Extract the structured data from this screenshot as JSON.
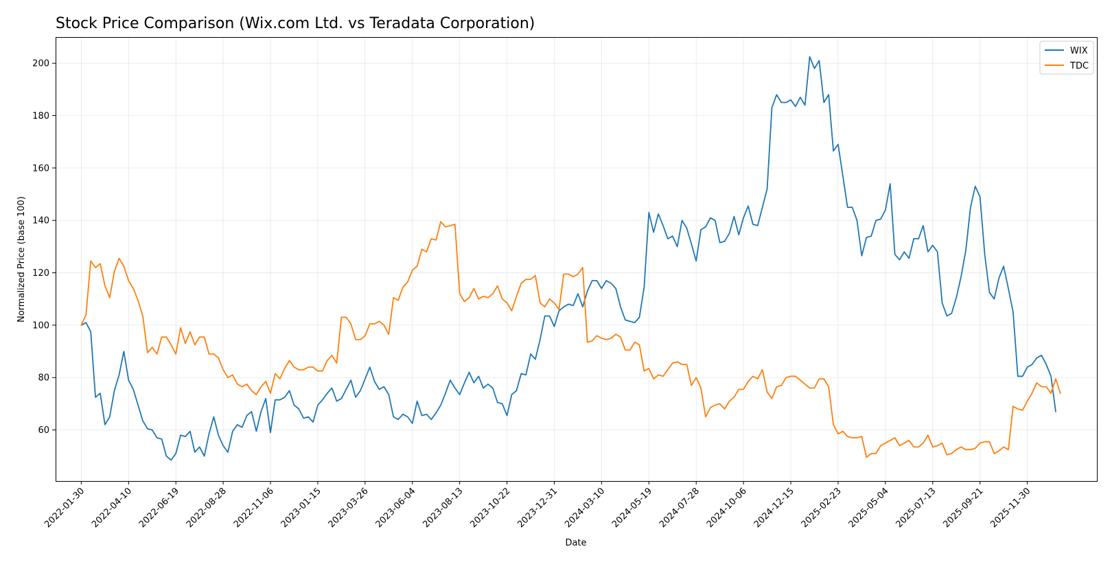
{
  "chart_data": {
    "type": "line",
    "title": "Stock Price Comparison (Wix.com Ltd. vs Teradata Corporation)",
    "xlabel": "Date",
    "ylabel": "Normalized Price (base 100)",
    "grid": true,
    "legend_position": "top-right",
    "x_start": "2022-01-30",
    "x_end": "2026-01-11",
    "x_step_days": 7,
    "x_range": [
      "2021-12-23",
      "2026-03-13"
    ],
    "ylim": [
      40.5,
      210
    ],
    "x_ticks": [
      "2022-01-30",
      "2022-04-10",
      "2022-06-19",
      "2022-08-28",
      "2022-11-06",
      "2023-01-15",
      "2023-03-26",
      "2023-06-04",
      "2023-08-13",
      "2023-10-22",
      "2023-12-31",
      "2024-03-10",
      "2024-05-19",
      "2024-07-28",
      "2024-10-06",
      "2024-12-15",
      "2025-02-23",
      "2025-05-04",
      "2025-07-13",
      "2025-09-21",
      "2025-11-30"
    ],
    "y_ticks": [
      60,
      80,
      100,
      120,
      140,
      160,
      180,
      200
    ],
    "series": [
      {
        "name": "WIX",
        "color": "#1f77b4",
        "values": [
          100,
          101,
          97.5,
          72.5,
          74,
          62,
          65,
          75,
          81,
          90,
          79,
          75.5,
          69.5,
          63.5,
          60.5,
          60,
          57,
          56.5,
          50,
          48.5,
          51,
          58,
          57.5,
          59.5,
          51.5,
          53.5,
          50,
          58.5,
          65,
          58,
          54,
          51.5,
          59.5,
          62,
          61,
          65.5,
          67,
          59.5,
          67,
          72,
          59,
          71.5,
          71.5,
          72.5,
          75,
          69.5,
          68,
          64.5,
          65,
          63,
          69.5,
          71.5,
          74,
          76,
          71,
          72,
          75.5,
          79,
          72.5,
          75,
          79.5,
          84,
          78.5,
          75.5,
          76.5,
          73.5,
          65,
          64,
          66,
          65,
          62.5,
          71,
          65.5,
          66,
          64,
          66.5,
          69.5,
          74,
          79,
          76,
          73.5,
          78,
          82,
          78,
          80.5,
          76,
          77.5,
          76,
          70.5,
          70,
          65.5,
          73.5,
          75,
          81.5,
          81,
          89,
          87,
          94.5,
          103.5,
          103.5,
          99.5,
          105.5,
          107,
          108,
          107.5,
          112,
          107,
          113,
          117,
          117,
          114,
          117,
          116,
          114,
          107,
          102,
          101.5,
          101,
          103,
          114.5,
          143,
          135.5,
          142.5,
          138,
          133,
          134,
          130,
          140,
          137,
          131,
          124.5,
          136.5,
          137.5,
          141,
          140,
          131.5,
          132,
          135,
          141.5,
          134.5,
          141,
          145.5,
          138.5,
          138,
          145,
          152,
          183,
          188,
          185,
          185,
          186,
          183.5,
          187,
          184,
          202.5,
          198,
          201,
          185,
          188,
          166.5,
          169,
          157,
          145,
          145,
          140,
          126.5,
          133.5,
          134,
          140,
          140.5,
          144,
          154,
          127,
          125,
          128,
          125.5,
          133,
          133,
          138,
          128,
          130.5,
          128,
          108.5,
          103.5,
          104.5,
          110.5,
          118.5,
          128.5,
          145,
          153,
          149,
          127,
          112.5,
          110,
          118,
          122.5,
          114,
          105,
          80.5,
          80.5,
          84,
          85,
          87.5,
          88.5,
          85,
          80.5,
          67
        ]
      },
      {
        "name": "TDC",
        "color": "#ff7f0e",
        "values": [
          100,
          104,
          124.5,
          122,
          123.5,
          115,
          110.5,
          120.5,
          125.5,
          122.5,
          117,
          114,
          109.5,
          103.5,
          89.5,
          91.5,
          89,
          95.5,
          95.5,
          92.5,
          89,
          99,
          93,
          97.5,
          92.5,
          95.5,
          95.5,
          89,
          89,
          87.5,
          83,
          80,
          81,
          77.5,
          76.5,
          77.5,
          75,
          73.5,
          76.5,
          78.5,
          74,
          81.5,
          79.5,
          83.5,
          86.5,
          84,
          83,
          83,
          84,
          84,
          82.5,
          82.5,
          86.5,
          88.5,
          85.5,
          103,
          103,
          100.5,
          94.5,
          94.5,
          96,
          100.5,
          100.5,
          101.5,
          100,
          96.5,
          110.5,
          109.5,
          114.5,
          116.5,
          121,
          122.5,
          129,
          128,
          133,
          132.5,
          139.5,
          137.5,
          138,
          138.5,
          112,
          109,
          110.5,
          114,
          110,
          111,
          110.5,
          112,
          115,
          110,
          108.5,
          105.5,
          111,
          116,
          117.5,
          117.5,
          119,
          108.5,
          107,
          110,
          108.5,
          106,
          119.5,
          119.5,
          118.5,
          119.5,
          122,
          93.5,
          94,
          96,
          95,
          94.5,
          95,
          96.5,
          95.5,
          90.5,
          90.5,
          93.5,
          92.5,
          82.5,
          83.5,
          79.5,
          81,
          80.5,
          83,
          85.5,
          86,
          85,
          85,
          77,
          80,
          76,
          65,
          68.5,
          69.5,
          70,
          68,
          71,
          72.5,
          75.5,
          75.5,
          78.5,
          80.5,
          79.5,
          83,
          74.5,
          72,
          76.5,
          77,
          80,
          80.5,
          80.5,
          79,
          77.5,
          76,
          76,
          79.5,
          79.5,
          76.5,
          62,
          58.5,
          59.5,
          57.5,
          57,
          57,
          57.5,
          49.5,
          51,
          51,
          54,
          55,
          56,
          57,
          54,
          55,
          56,
          53.5,
          53.5,
          55,
          58,
          53.5,
          54,
          55,
          50.5,
          51,
          52.5,
          53.5,
          52.5,
          52.5,
          53,
          55,
          55.5,
          55.5,
          51,
          52,
          53.5,
          52.5,
          69,
          68,
          67.5,
          71,
          74,
          78,
          76.5,
          76.5,
          74,
          79.5,
          74
        ]
      }
    ]
  }
}
